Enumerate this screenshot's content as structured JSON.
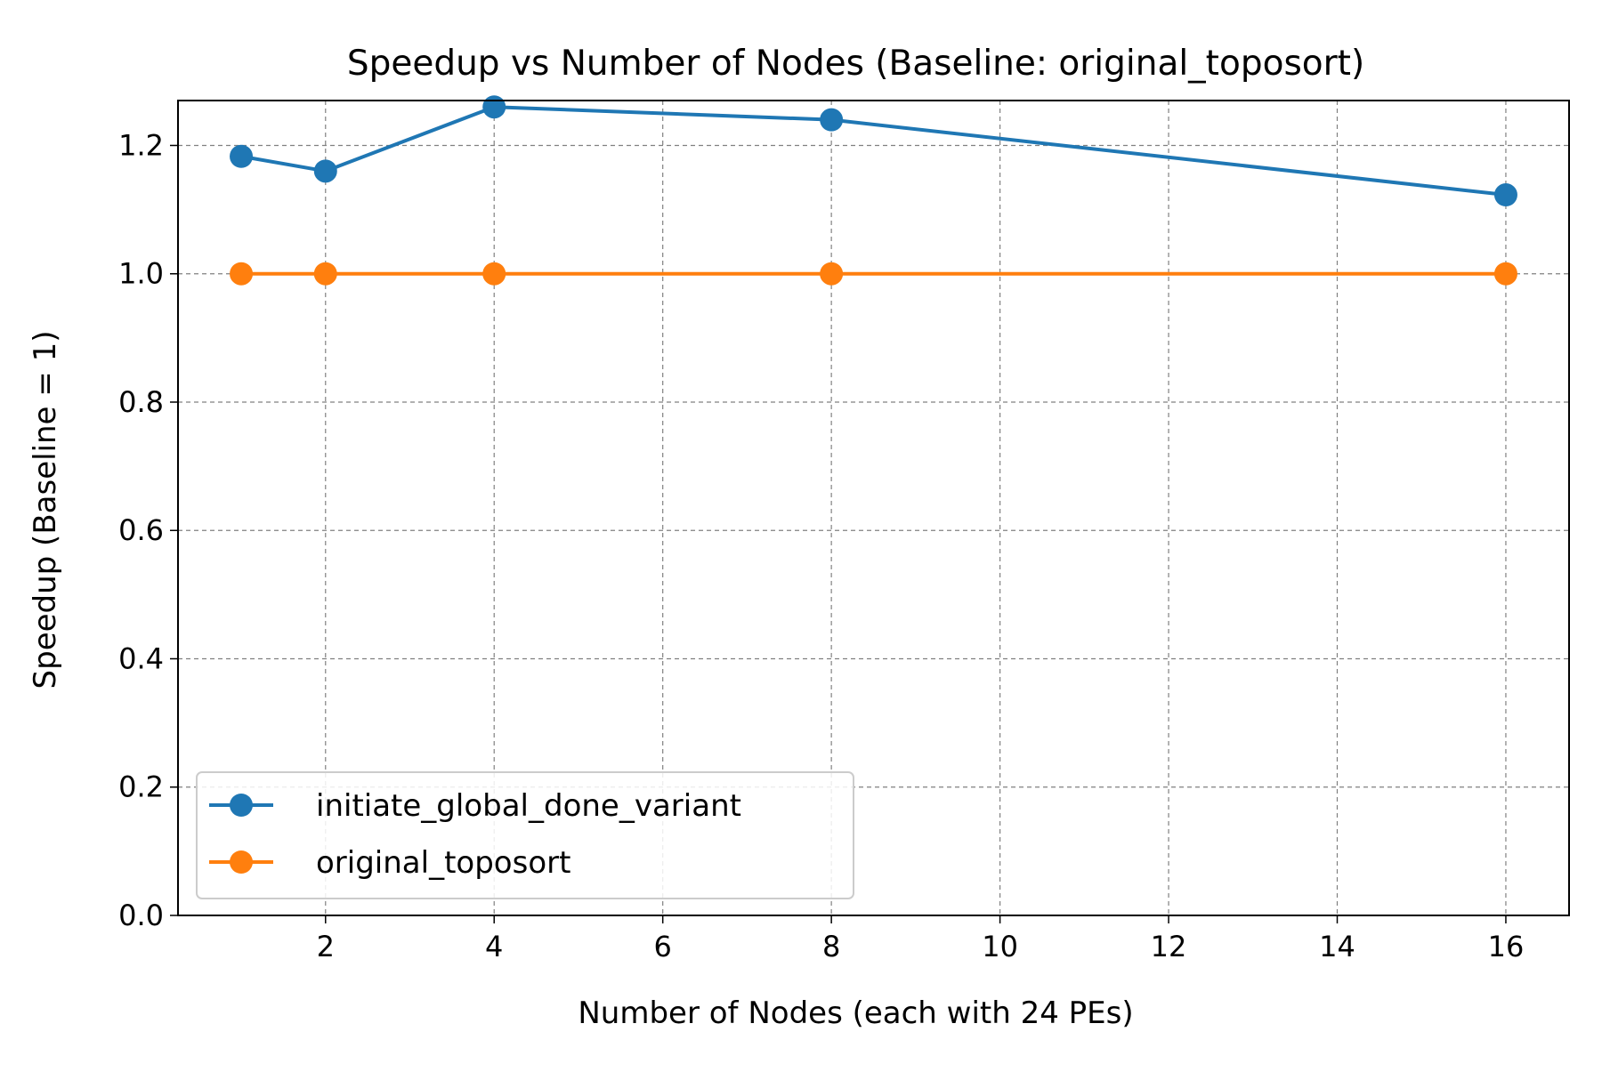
{
  "chart_data": {
    "type": "line",
    "title": "Speedup vs Number of Nodes (Baseline: original_toposort)",
    "xlabel": "Number of Nodes (each with 24 PEs)",
    "ylabel": "Speedup (Baseline = 1)",
    "xlim": [
      0.25,
      16.75
    ],
    "ylim": [
      0.0,
      1.27
    ],
    "xticks": [
      2,
      4,
      6,
      8,
      10,
      12,
      14,
      16
    ],
    "yticks": [
      0.0,
      0.2,
      0.4,
      0.6,
      0.8,
      1.0,
      1.2
    ],
    "xtick_labels": [
      "2",
      "4",
      "6",
      "8",
      "10",
      "12",
      "14",
      "16"
    ],
    "ytick_labels": [
      "0.0",
      "0.2",
      "0.4",
      "0.6",
      "0.8",
      "1.0",
      "1.2"
    ],
    "grid": true,
    "legend_position": "lower-left",
    "x": [
      1,
      2,
      4,
      8,
      16
    ],
    "series": [
      {
        "name": "initiate_global_done_variant",
        "color": "#1f77b4",
        "marker": "circle",
        "values": [
          1.183,
          1.16,
          1.26,
          1.24,
          1.123
        ]
      },
      {
        "name": "original_toposort",
        "color": "#ff7f0e",
        "marker": "circle",
        "values": [
          1.0,
          1.0,
          1.0,
          1.0,
          1.0
        ]
      }
    ]
  }
}
